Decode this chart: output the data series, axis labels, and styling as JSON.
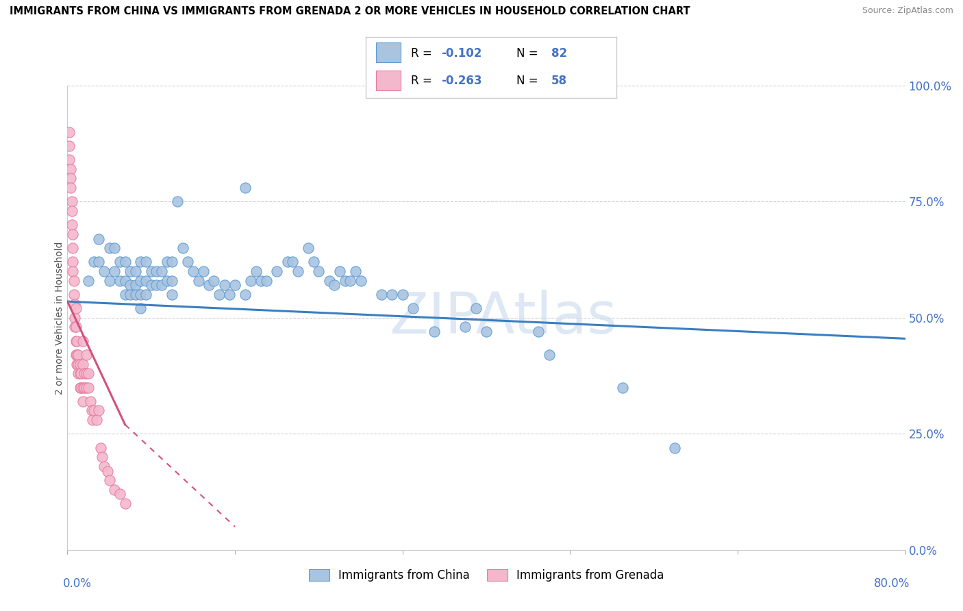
{
  "title": "IMMIGRANTS FROM CHINA VS IMMIGRANTS FROM GRENADA 2 OR MORE VEHICLES IN HOUSEHOLD CORRELATION CHART",
  "source": "Source: ZipAtlas.com",
  "ylabel": "2 or more Vehicles in Household",
  "ytick_labels": [
    "0.0%",
    "25.0%",
    "50.0%",
    "75.0%",
    "100.0%"
  ],
  "ytick_values": [
    0,
    0.25,
    0.5,
    0.75,
    1.0
  ],
  "xlim": [
    0,
    0.8
  ],
  "ylim": [
    0,
    1.0
  ],
  "china_color": "#aac4e0",
  "china_edge_color": "#5b9bd5",
  "grenada_color": "#f4b8cc",
  "grenada_edge_color": "#e87aa0",
  "china_line_color": "#3a7fc1",
  "grenada_line_color": "#d45080",
  "watermark": "ZIPAtlas",
  "china_R": "-0.102",
  "china_N": "82",
  "grenada_R": "-0.263",
  "grenada_N": "58",
  "china_legend_label": "Immigrants from China",
  "grenada_legend_label": "Immigrants from Grenada",
  "china_trendline": [
    0.0,
    0.535,
    0.8,
    0.455
  ],
  "grenada_trendline_solid": [
    0.0,
    0.535,
    0.055,
    0.27
  ],
  "grenada_trendline_dashed": [
    0.055,
    0.27,
    0.16,
    0.05
  ],
  "china_points": [
    [
      0.02,
      0.58
    ],
    [
      0.025,
      0.62
    ],
    [
      0.03,
      0.62
    ],
    [
      0.03,
      0.67
    ],
    [
      0.035,
      0.6
    ],
    [
      0.04,
      0.65
    ],
    [
      0.04,
      0.58
    ],
    [
      0.045,
      0.65
    ],
    [
      0.045,
      0.6
    ],
    [
      0.05,
      0.62
    ],
    [
      0.05,
      0.58
    ],
    [
      0.055,
      0.62
    ],
    [
      0.055,
      0.58
    ],
    [
      0.055,
      0.55
    ],
    [
      0.06,
      0.6
    ],
    [
      0.06,
      0.57
    ],
    [
      0.06,
      0.55
    ],
    [
      0.065,
      0.6
    ],
    [
      0.065,
      0.57
    ],
    [
      0.065,
      0.55
    ],
    [
      0.07,
      0.62
    ],
    [
      0.07,
      0.58
    ],
    [
      0.07,
      0.55
    ],
    [
      0.07,
      0.52
    ],
    [
      0.075,
      0.62
    ],
    [
      0.075,
      0.58
    ],
    [
      0.075,
      0.55
    ],
    [
      0.08,
      0.6
    ],
    [
      0.08,
      0.57
    ],
    [
      0.085,
      0.6
    ],
    [
      0.085,
      0.57
    ],
    [
      0.09,
      0.6
    ],
    [
      0.09,
      0.57
    ],
    [
      0.095,
      0.62
    ],
    [
      0.095,
      0.58
    ],
    [
      0.1,
      0.62
    ],
    [
      0.1,
      0.58
    ],
    [
      0.1,
      0.55
    ],
    [
      0.105,
      0.75
    ],
    [
      0.11,
      0.65
    ],
    [
      0.115,
      0.62
    ],
    [
      0.12,
      0.6
    ],
    [
      0.125,
      0.58
    ],
    [
      0.13,
      0.6
    ],
    [
      0.135,
      0.57
    ],
    [
      0.14,
      0.58
    ],
    [
      0.145,
      0.55
    ],
    [
      0.15,
      0.57
    ],
    [
      0.155,
      0.55
    ],
    [
      0.16,
      0.57
    ],
    [
      0.17,
      0.78
    ],
    [
      0.17,
      0.55
    ],
    [
      0.175,
      0.58
    ],
    [
      0.18,
      0.6
    ],
    [
      0.185,
      0.58
    ],
    [
      0.19,
      0.58
    ],
    [
      0.2,
      0.6
    ],
    [
      0.21,
      0.62
    ],
    [
      0.215,
      0.62
    ],
    [
      0.22,
      0.6
    ],
    [
      0.23,
      0.65
    ],
    [
      0.235,
      0.62
    ],
    [
      0.24,
      0.6
    ],
    [
      0.25,
      0.58
    ],
    [
      0.255,
      0.57
    ],
    [
      0.26,
      0.6
    ],
    [
      0.265,
      0.58
    ],
    [
      0.27,
      0.58
    ],
    [
      0.275,
      0.6
    ],
    [
      0.28,
      0.58
    ],
    [
      0.3,
      0.55
    ],
    [
      0.31,
      0.55
    ],
    [
      0.32,
      0.55
    ],
    [
      0.33,
      0.52
    ],
    [
      0.35,
      0.47
    ],
    [
      0.38,
      0.48
    ],
    [
      0.39,
      0.52
    ],
    [
      0.4,
      0.47
    ],
    [
      0.45,
      0.47
    ],
    [
      0.46,
      0.42
    ],
    [
      0.53,
      0.35
    ],
    [
      0.58,
      0.22
    ]
  ],
  "grenada_points": [
    [
      0.002,
      0.9
    ],
    [
      0.002,
      0.87
    ],
    [
      0.002,
      0.84
    ],
    [
      0.003,
      0.82
    ],
    [
      0.003,
      0.8
    ],
    [
      0.003,
      0.78
    ],
    [
      0.004,
      0.75
    ],
    [
      0.004,
      0.73
    ],
    [
      0.004,
      0.7
    ],
    [
      0.005,
      0.68
    ],
    [
      0.005,
      0.65
    ],
    [
      0.005,
      0.62
    ],
    [
      0.005,
      0.6
    ],
    [
      0.006,
      0.58
    ],
    [
      0.006,
      0.55
    ],
    [
      0.007,
      0.53
    ],
    [
      0.007,
      0.5
    ],
    [
      0.007,
      0.48
    ],
    [
      0.008,
      0.52
    ],
    [
      0.008,
      0.48
    ],
    [
      0.008,
      0.45
    ],
    [
      0.008,
      0.42
    ],
    [
      0.009,
      0.45
    ],
    [
      0.009,
      0.42
    ],
    [
      0.009,
      0.4
    ],
    [
      0.01,
      0.42
    ],
    [
      0.01,
      0.4
    ],
    [
      0.01,
      0.38
    ],
    [
      0.012,
      0.4
    ],
    [
      0.012,
      0.38
    ],
    [
      0.012,
      0.35
    ],
    [
      0.013,
      0.38
    ],
    [
      0.013,
      0.35
    ],
    [
      0.015,
      0.45
    ],
    [
      0.015,
      0.4
    ],
    [
      0.015,
      0.35
    ],
    [
      0.015,
      0.32
    ],
    [
      0.016,
      0.38
    ],
    [
      0.016,
      0.35
    ],
    [
      0.018,
      0.42
    ],
    [
      0.018,
      0.38
    ],
    [
      0.018,
      0.35
    ],
    [
      0.02,
      0.38
    ],
    [
      0.02,
      0.35
    ],
    [
      0.022,
      0.32
    ],
    [
      0.023,
      0.3
    ],
    [
      0.024,
      0.28
    ],
    [
      0.025,
      0.3
    ],
    [
      0.028,
      0.28
    ],
    [
      0.03,
      0.3
    ],
    [
      0.032,
      0.22
    ],
    [
      0.033,
      0.2
    ],
    [
      0.035,
      0.18
    ],
    [
      0.038,
      0.17
    ],
    [
      0.04,
      0.15
    ],
    [
      0.045,
      0.13
    ],
    [
      0.05,
      0.12
    ],
    [
      0.055,
      0.1
    ]
  ]
}
